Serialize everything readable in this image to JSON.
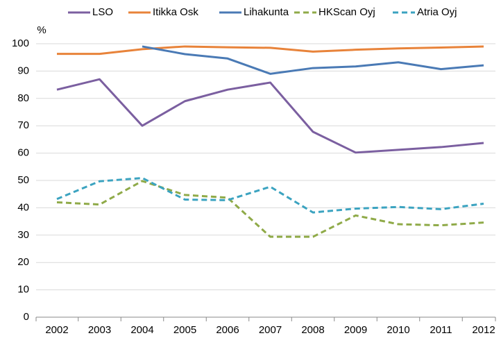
{
  "chart_data": {
    "type": "line",
    "y_label": "%",
    "categories": [
      "2002",
      "2003",
      "2004",
      "2005",
      "2006",
      "2007",
      "2008",
      "2009",
      "2010",
      "2011",
      "2012"
    ],
    "ylim": [
      0,
      100
    ],
    "yticks": [
      0,
      10,
      20,
      30,
      40,
      50,
      60,
      70,
      80,
      90,
      100
    ],
    "grid": true,
    "legend": "top",
    "series": [
      {
        "name": "LSO",
        "color": "#7b5fa0",
        "dashed": false,
        "values": [
          83.2,
          87,
          70,
          79,
          83.2,
          85.8,
          67.8,
          60.2,
          61.2,
          62.2,
          63.7
        ]
      },
      {
        "name": "Itikka Osk",
        "color": "#e8833a",
        "dashed": false,
        "values": [
          96.3,
          96.3,
          98,
          99,
          98.7,
          98.5,
          97.1,
          97.8,
          98.3,
          98.6,
          99
        ]
      },
      {
        "name": "Lihakunta",
        "color": "#4a7ab5",
        "dashed": false,
        "values": [
          null,
          null,
          99,
          96.2,
          94.6,
          89,
          91.1,
          91.7,
          93.2,
          90.7,
          92.1
        ]
      },
      {
        "name": "HKScan Oyj",
        "color": "#8faa48",
        "dashed": true,
        "values": [
          42,
          41.2,
          49.8,
          44.7,
          43.7,
          29.4,
          29.4,
          37.2,
          34,
          33.6,
          34.6
        ]
      },
      {
        "name": "Atria Oyj",
        "color": "#3ba3c0",
        "dashed": true,
        "values": [
          43.2,
          49.7,
          50.9,
          43,
          42.8,
          47.7,
          38.3,
          39.7,
          40.3,
          39.5,
          41.5
        ]
      }
    ]
  }
}
